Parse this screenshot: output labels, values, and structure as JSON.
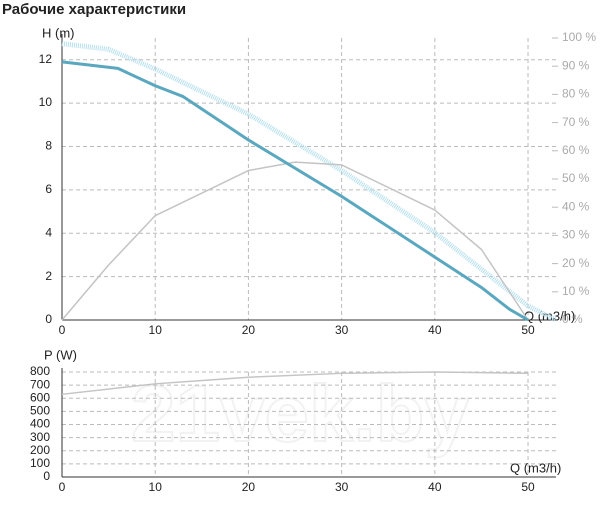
{
  "title": "Рабочие характеристики",
  "watermark": "21vek.by",
  "chart_data": [
    {
      "type": "line",
      "ylabel": "H (m)",
      "xlabel": "Q (m3/h)",
      "xlim": [
        0,
        53
      ],
      "xticks": [
        0,
        10,
        20,
        30,
        40,
        50
      ],
      "ylim": [
        0,
        13
      ],
      "yticks": [
        0,
        2,
        4,
        6,
        8,
        10,
        12
      ],
      "y2lim": [
        0,
        100
      ],
      "y2ticks": [
        {
          "value": 0,
          "label": "0 %"
        },
        {
          "value": 10,
          "label": "10 %"
        },
        {
          "value": 20,
          "label": "20 %"
        },
        {
          "value": 30,
          "label": "30 %"
        },
        {
          "value": 40,
          "label": "40 %"
        },
        {
          "value": 50,
          "label": "50 %"
        },
        {
          "value": 60,
          "label": "60 %"
        },
        {
          "value": 70,
          "label": "70 %"
        },
        {
          "value": 80,
          "label": "80 %"
        },
        {
          "value": 90,
          "label": "90 %"
        },
        {
          "value": 100,
          "label": "100 %"
        }
      ],
      "grid": true,
      "series": [
        {
          "color": "#b7e0ee",
          "axis": "y2",
          "dashed": true,
          "x": [
            0,
            5,
            10,
            20,
            30,
            40,
            45,
            50,
            53
          ],
          "values": [
            98,
            96,
            89,
            73,
            53,
            31,
            18,
            5,
            0
          ]
        },
        {
          "color": "#c4c4c4",
          "axis": "y2",
          "x": [
            0,
            5,
            10,
            20,
            25,
            30,
            40,
            45,
            50
          ],
          "values": [
            0,
            19.5,
            37,
            53,
            56,
            55,
            39,
            25,
            0
          ]
        },
        {
          "color": "#5aa7c0",
          "x": [
            0,
            6,
            10,
            13,
            20,
            30,
            40,
            45,
            48,
            50
          ],
          "values": [
            11.9,
            11.6,
            10.8,
            10.3,
            8.3,
            5.7,
            2.9,
            1.5,
            0.5,
            0
          ]
        }
      ]
    },
    {
      "type": "line",
      "ylabel": "P (W)",
      "xlabel": "Q (m3/h)",
      "xlim": [
        0,
        53
      ],
      "xticks": [
        0,
        10,
        20,
        30,
        40,
        50
      ],
      "ylim": [
        0,
        800
      ],
      "yticks": [
        0,
        100,
        200,
        300,
        400,
        500,
        600,
        700,
        800
      ],
      "grid": true,
      "series": [
        {
          "color": "#c4c4c4",
          "x": [
            0,
            10,
            20,
            30,
            40,
            50
          ],
          "values": [
            630,
            710,
            760,
            790,
            800,
            790
          ]
        }
      ]
    }
  ]
}
